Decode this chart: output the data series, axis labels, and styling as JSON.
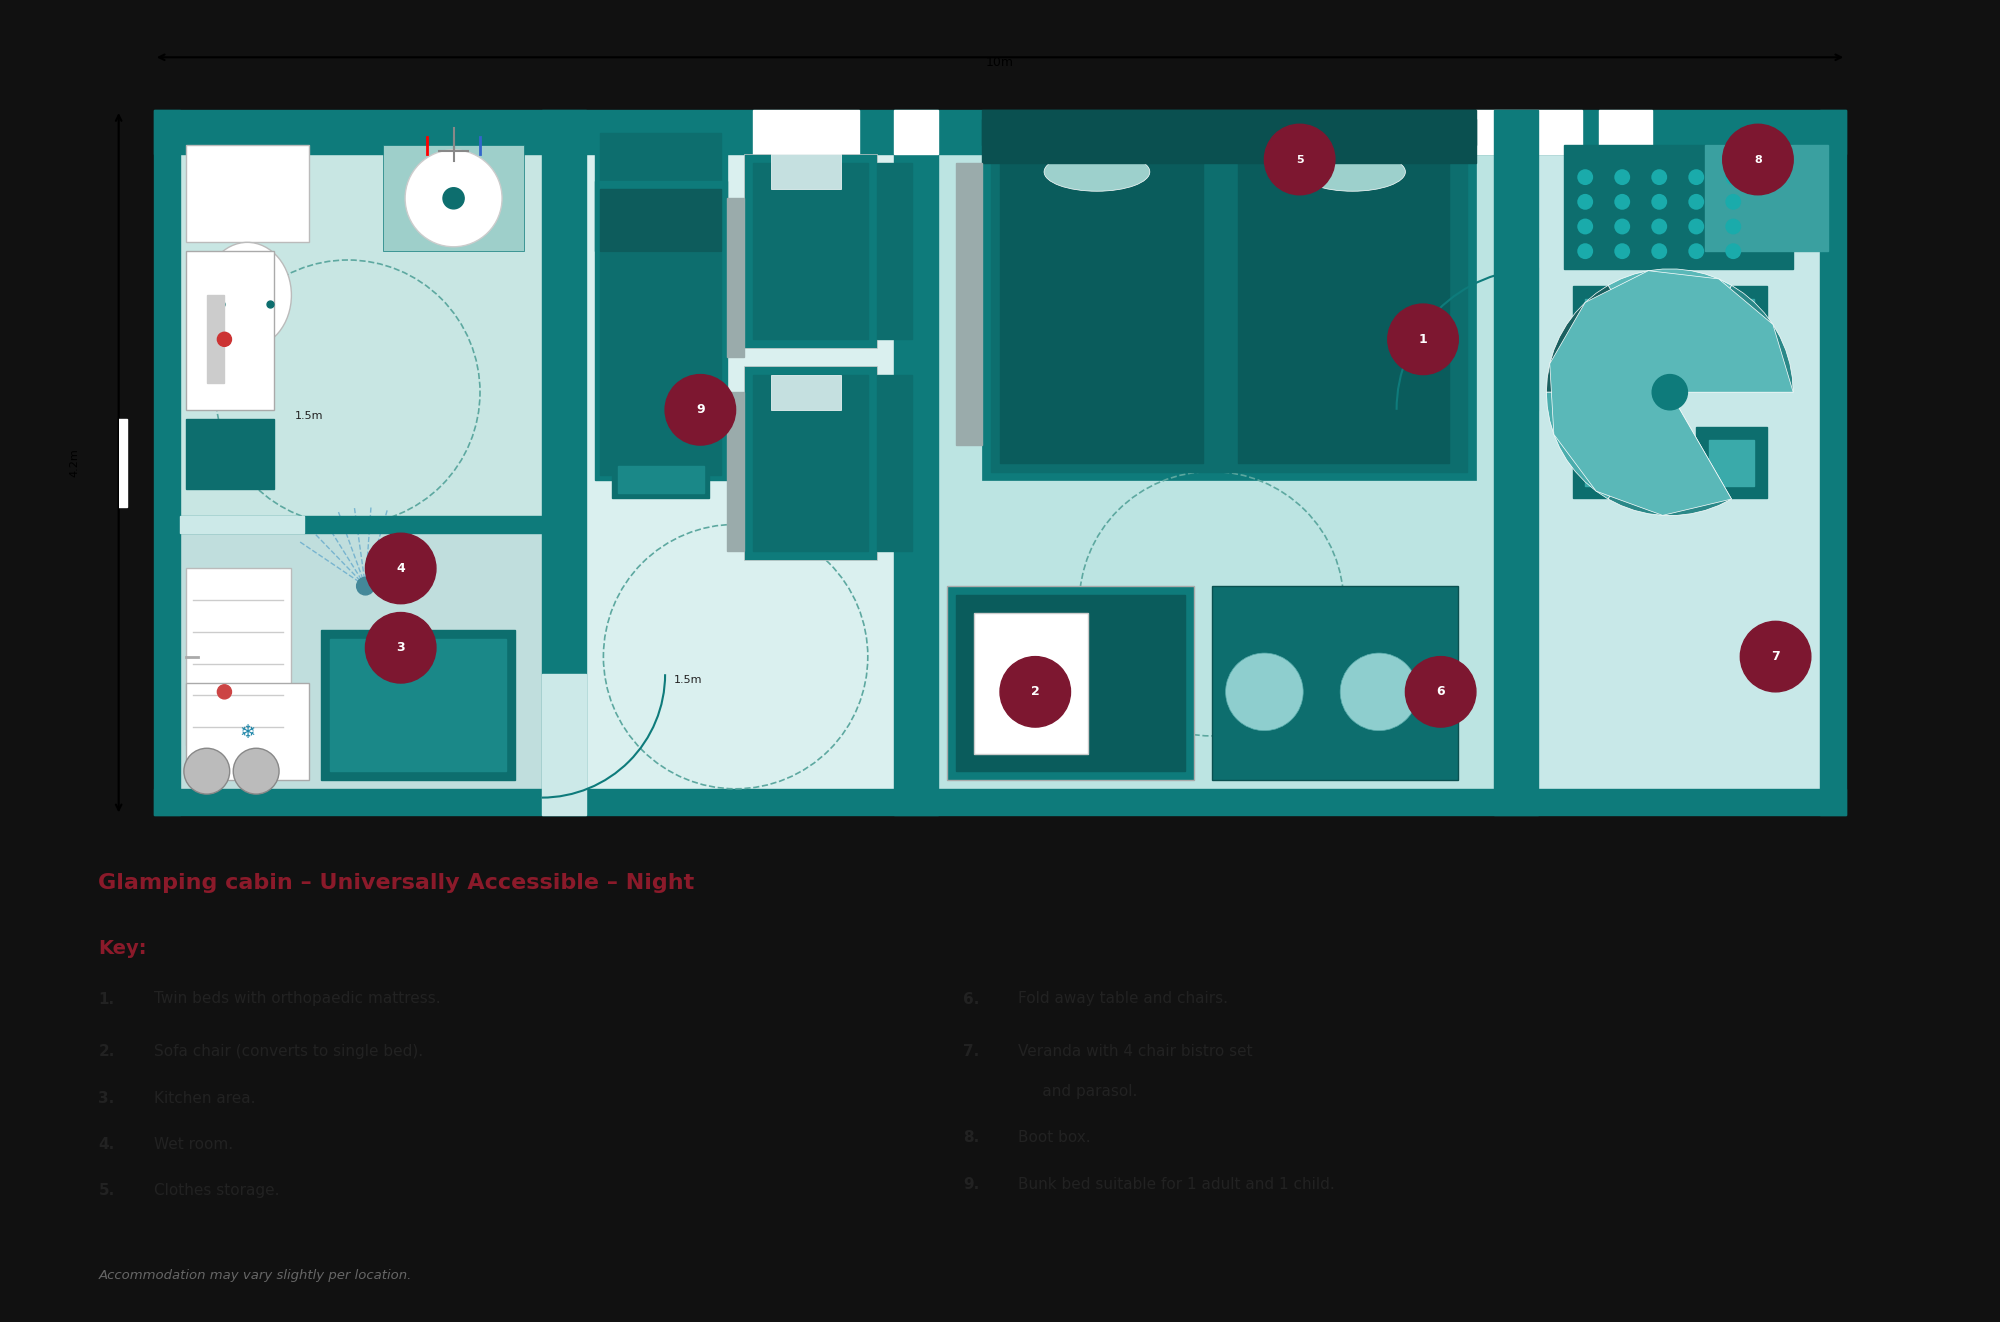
{
  "bg_color": "#111111",
  "wall_teal": "#0e7b7b",
  "wall_dark": "#085858",
  "floor_light": "#cce9e8",
  "floor_lighter": "#daf0ef",
  "bath_green": "#b2d8d2",
  "teal_dark": "#0d6e6e",
  "teal_mid": "#0e8080",
  "teal_accent": "#197070",
  "gray_rail": "#9aabab",
  "white": "#ffffff",
  "red_circle": "#7d1730",
  "text_dark": "#222222",
  "text_red": "#8b1a2a",
  "text_gray": "#555555",
  "title": "Glamping cabin – Universally Accessible – Night",
  "key_left": [
    [
      "1.",
      "Twin beds with orthopaedic mattress."
    ],
    [
      "2.",
      "Sofa chair (converts to single bed)."
    ],
    [
      "3.",
      "Kitchen area."
    ],
    [
      "4.",
      "Wet room."
    ],
    [
      "5.",
      "Clothes storage."
    ]
  ],
  "key_right": [
    [
      "6.",
      "Fold away table and chairs."
    ],
    [
      "7.",
      "Veranda with 4 chair bistro set"
    ],
    [
      "",
      "     and parasol."
    ],
    [
      "8.",
      "Boot box."
    ],
    [
      "9.",
      "Bunk bed suitable for 1 adult and 1 child."
    ]
  ],
  "footnote": "Accommodation may vary slightly per location."
}
